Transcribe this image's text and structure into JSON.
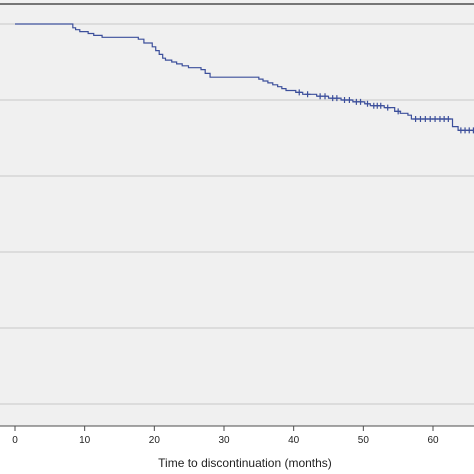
{
  "chart_data": {
    "type": "line",
    "title": "",
    "xlabel": "Time to discontinuation (months)",
    "ylabel": "",
    "xlim": [
      0,
      66
    ],
    "ylim": [
      0,
      1.05
    ],
    "x_ticks": [
      0,
      10,
      20,
      30,
      40,
      50,
      60
    ],
    "y_gridlines": [
      1.0,
      0.8,
      0.6,
      0.4,
      0.2,
      0.0
    ],
    "grid": true,
    "legend": "none",
    "series": [
      {
        "name": "",
        "color": "#3c4f9b",
        "step": true,
        "x": [
          0,
          8.3,
          8.7,
          9.3,
          10.5,
          11.3,
          12.5,
          17.7,
          18.5,
          19.7,
          20.2,
          20.7,
          21.2,
          21.6,
          22.5,
          23.2,
          24.0,
          24.9,
          26.7,
          27.3,
          28.0,
          35.0,
          35.6,
          36.3,
          37.0,
          37.7,
          38.3,
          38.9,
          40.3,
          41.3,
          43.3,
          45.0,
          46.8,
          48.5,
          50.2,
          51.0,
          53.0,
          54.5,
          55.3,
          56.4,
          56.9,
          62.8,
          63.6,
          66
        ],
        "y": [
          1.0,
          0.99,
          0.985,
          0.98,
          0.975,
          0.97,
          0.965,
          0.96,
          0.95,
          0.94,
          0.93,
          0.92,
          0.91,
          0.905,
          0.9,
          0.895,
          0.89,
          0.885,
          0.88,
          0.87,
          0.86,
          0.855,
          0.85,
          0.845,
          0.84,
          0.835,
          0.83,
          0.825,
          0.82,
          0.815,
          0.81,
          0.805,
          0.8,
          0.795,
          0.79,
          0.785,
          0.78,
          0.77,
          0.765,
          0.76,
          0.75,
          0.73,
          0.72,
          0.72
        ],
        "censored": [
          {
            "x": 40.8,
            "y": 0.82
          },
          {
            "x": 42.0,
            "y": 0.815
          },
          {
            "x": 43.8,
            "y": 0.81
          },
          {
            "x": 44.5,
            "y": 0.81
          },
          {
            "x": 45.6,
            "y": 0.805
          },
          {
            "x": 46.2,
            "y": 0.805
          },
          {
            "x": 47.3,
            "y": 0.8
          },
          {
            "x": 48.0,
            "y": 0.8
          },
          {
            "x": 49.0,
            "y": 0.795
          },
          {
            "x": 49.6,
            "y": 0.795
          },
          {
            "x": 50.6,
            "y": 0.79
          },
          {
            "x": 51.5,
            "y": 0.785
          },
          {
            "x": 52.0,
            "y": 0.785
          },
          {
            "x": 52.5,
            "y": 0.785
          },
          {
            "x": 53.5,
            "y": 0.78
          },
          {
            "x": 55.0,
            "y": 0.77
          },
          {
            "x": 57.5,
            "y": 0.75
          },
          {
            "x": 58.2,
            "y": 0.75
          },
          {
            "x": 58.9,
            "y": 0.75
          },
          {
            "x": 59.6,
            "y": 0.75
          },
          {
            "x": 60.3,
            "y": 0.75
          },
          {
            "x": 61.0,
            "y": 0.75
          },
          {
            "x": 61.6,
            "y": 0.75
          },
          {
            "x": 62.2,
            "y": 0.75
          },
          {
            "x": 64.0,
            "y": 0.72
          },
          {
            "x": 64.6,
            "y": 0.72
          },
          {
            "x": 65.2,
            "y": 0.72
          },
          {
            "x": 65.8,
            "y": 0.72
          }
        ]
      }
    ]
  }
}
